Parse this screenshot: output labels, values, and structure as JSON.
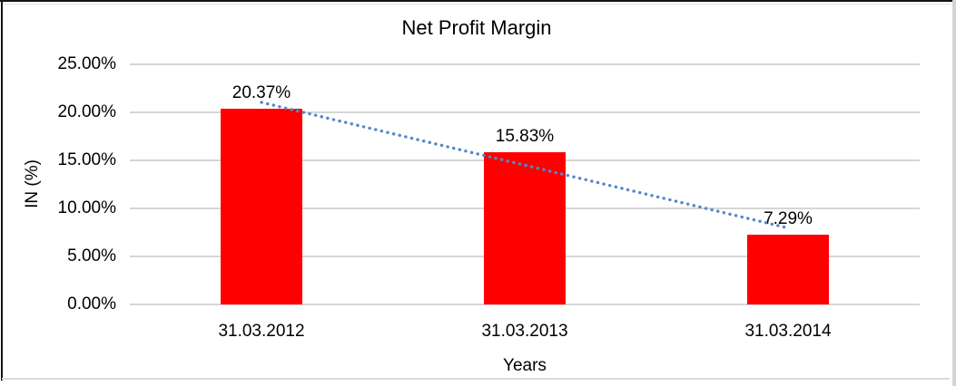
{
  "chart_data": {
    "type": "bar",
    "title": "Net Profit Margin",
    "xlabel": "Years",
    "ylabel": "IN (%)",
    "categories": [
      "31.03.2012",
      "31.03.2013",
      "31.03.2014"
    ],
    "values": [
      20.37,
      15.83,
      7.29
    ],
    "data_labels": [
      "20.37%",
      "15.83%",
      "7.29%"
    ],
    "ylim": [
      0,
      25
    ],
    "yticks": [
      {
        "value": 25,
        "label": "25.00%"
      },
      {
        "value": 20,
        "label": "20.00%"
      },
      {
        "value": 15,
        "label": "15.00%"
      },
      {
        "value": 10,
        "label": "10.00%"
      },
      {
        "value": 5,
        "label": "5.00%"
      },
      {
        "value": 0,
        "label": "0.00%"
      }
    ],
    "grid": true,
    "legend": "none",
    "colors": {
      "bar": "#ff0000",
      "gridline": "#d6d6d6",
      "text": "#000000",
      "trendline": "#5588c7"
    },
    "trendline": {
      "shape": "linear",
      "style": "dotted",
      "values": [
        21.04,
        14.5,
        7.96
      ]
    }
  }
}
